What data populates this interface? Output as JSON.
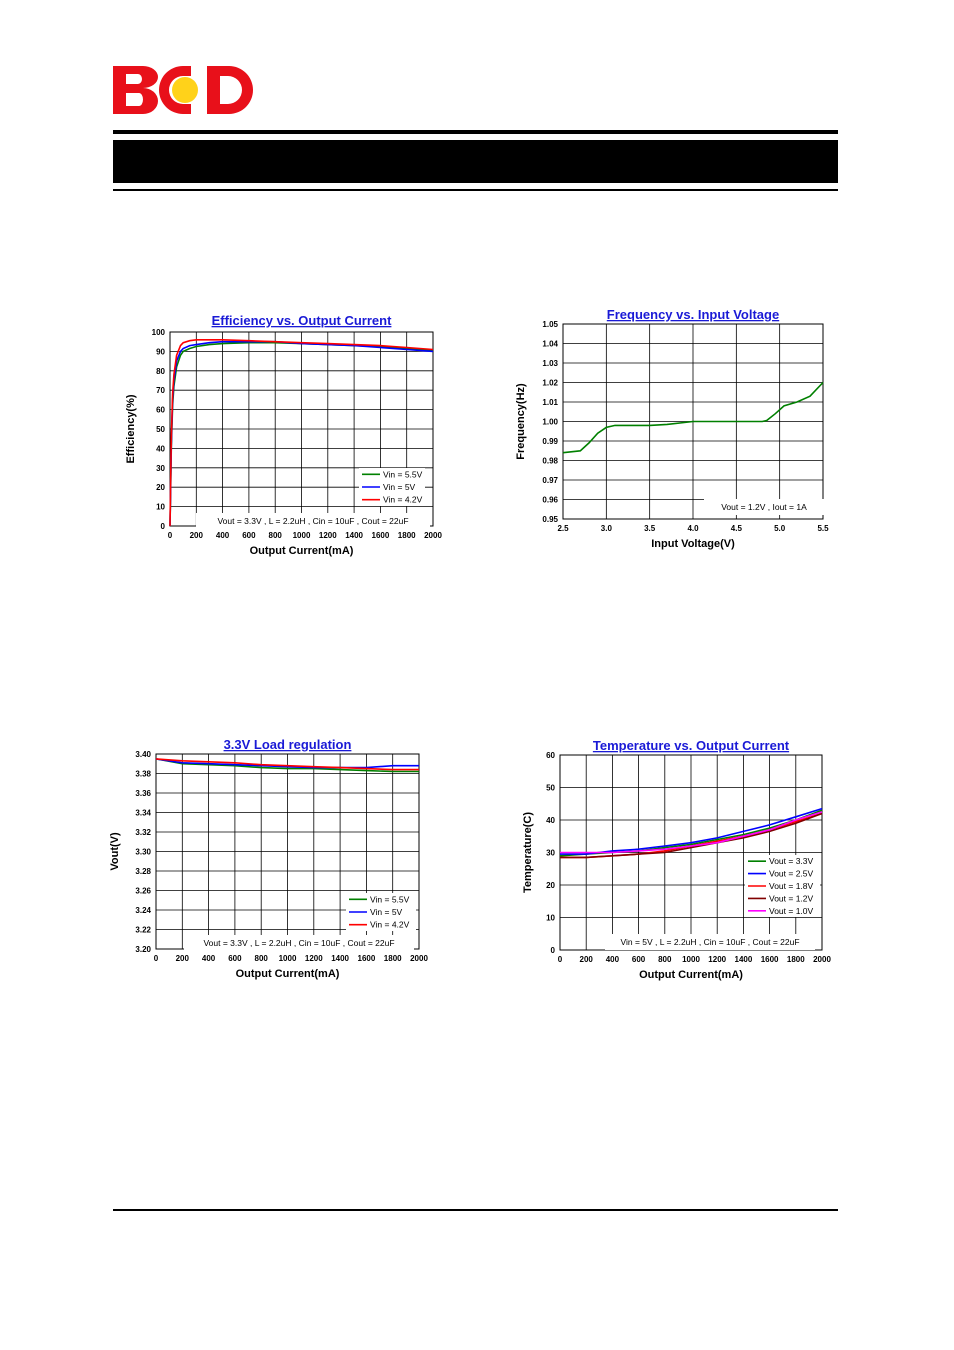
{
  "header": {
    "logo_text": "BCD",
    "logo_colors": {
      "letters": "#e8101a",
      "circle": "#ffd21a"
    }
  },
  "chart_data": [
    {
      "type": "line",
      "title": "Efficiency vs. Output Current",
      "xlabel": "Output Current(mA)",
      "ylabel": "Efficiency(%)",
      "xlim": [
        0,
        2000
      ],
      "ylim": [
        0,
        100
      ],
      "xticks": [
        0,
        200,
        400,
        600,
        800,
        1000,
        1200,
        1400,
        1600,
        1800,
        2000
      ],
      "yticks": [
        0,
        10,
        20,
        30,
        40,
        50,
        60,
        70,
        80,
        90,
        100
      ],
      "grid": true,
      "legend_position": "bottom-right",
      "annotation": "Vout = 3.3V , L = 2.2uH , Cin = 10uF , Cout = 22uF",
      "series": [
        {
          "name": "Vin = 5.5V",
          "color": "#008000",
          "x": [
            0,
            5,
            10,
            20,
            30,
            50,
            80,
            100,
            150,
            200,
            300,
            400,
            600,
            800,
            1000,
            1200,
            1400,
            1600,
            1800,
            2000
          ],
          "y": [
            0,
            20,
            40,
            62,
            72,
            82,
            88,
            90,
            91.5,
            92.5,
            93.5,
            94,
            94.5,
            94.5,
            94,
            93.5,
            93,
            92.5,
            91.5,
            90.5
          ]
        },
        {
          "name": "Vin = 5V",
          "color": "#0000ff",
          "x": [
            0,
            5,
            10,
            20,
            30,
            50,
            80,
            100,
            150,
            200,
            300,
            400,
            600,
            800,
            1000,
            1200,
            1400,
            1600,
            1800,
            2000
          ],
          "y": [
            0,
            22,
            42,
            65,
            75,
            85,
            90,
            91.5,
            93,
            93.5,
            94.5,
            95,
            95,
            95,
            94,
            93.5,
            93,
            92,
            91,
            90
          ]
        },
        {
          "name": "Vin = 4.2V",
          "color": "#ff0000",
          "x": [
            0,
            5,
            10,
            20,
            30,
            50,
            80,
            100,
            150,
            200,
            300,
            400,
            600,
            800,
            1000,
            1200,
            1400,
            1600,
            1800,
            2000
          ],
          "y": [
            0,
            25,
            45,
            68,
            78,
            88,
            93,
            94.5,
            95.5,
            96,
            96,
            96,
            95.5,
            95,
            94.5,
            94,
            93.5,
            93,
            92,
            91
          ]
        }
      ]
    },
    {
      "type": "line",
      "title": "Frequency vs. Input Voltage",
      "xlabel": "Input Voltage(V)",
      "ylabel": "Frequency(Hz)",
      "xlim": [
        2.5,
        5.5
      ],
      "ylim": [
        0.95,
        1.05
      ],
      "xticks": [
        "2.5",
        "3.0",
        "3.5",
        "4.0",
        "4.5",
        "5.0",
        "5.5"
      ],
      "yticks": [
        "0.95",
        "0.96",
        "0.97",
        "0.98",
        "0.99",
        "1.00",
        "1.01",
        "1.02",
        "1.03",
        "1.04",
        "1.05"
      ],
      "grid": true,
      "annotation": "Vout = 1.2V , Iout = 1A",
      "series": [
        {
          "name": "",
          "color": "#008000",
          "x": [
            2.5,
            2.7,
            2.8,
            2.9,
            3.0,
            3.1,
            3.2,
            3.5,
            3.7,
            3.9,
            4.0,
            4.3,
            4.6,
            4.8,
            4.85,
            4.95,
            5.05,
            5.2,
            5.35,
            5.5
          ],
          "y": [
            0.984,
            0.985,
            0.989,
            0.994,
            0.997,
            0.998,
            0.998,
            0.998,
            0.9985,
            0.9995,
            1.0,
            1.0,
            1.0,
            1.0,
            1.0005,
            1.004,
            1.008,
            1.01,
            1.013,
            1.02
          ]
        }
      ]
    },
    {
      "type": "line",
      "title": "3.3V Load regulation",
      "xlabel": "Output Current(mA)",
      "ylabel": "Vout(V)",
      "xlim": [
        0,
        2000
      ],
      "ylim": [
        3.2,
        3.4
      ],
      "xticks": [
        0,
        200,
        400,
        600,
        800,
        1000,
        1200,
        1400,
        1600,
        1800,
        2000
      ],
      "yticks": [
        "3.20",
        "3.22",
        "3.24",
        "3.26",
        "3.28",
        "3.30",
        "3.32",
        "3.34",
        "3.36",
        "3.38",
        "3.40"
      ],
      "grid": true,
      "legend_position": "bottom-right",
      "annotation": "Vout = 3.3V , L = 2.2uH , Cin = 10uF , Cout = 22uF",
      "series": [
        {
          "name": "Vin = 5.5V",
          "color": "#008000",
          "x": [
            0,
            200,
            400,
            600,
            800,
            1000,
            1200,
            1400,
            1600,
            1800,
            2000
          ],
          "y": [
            3.395,
            3.39,
            3.389,
            3.388,
            3.386,
            3.385,
            3.385,
            3.384,
            3.383,
            3.382,
            3.382
          ]
        },
        {
          "name": "Vin = 5V",
          "color": "#0000ff",
          "x": [
            0,
            200,
            400,
            600,
            800,
            1000,
            1200,
            1400,
            1600,
            1800,
            2000
          ],
          "y": [
            3.395,
            3.391,
            3.39,
            3.389,
            3.388,
            3.387,
            3.386,
            3.386,
            3.386,
            3.388,
            3.388
          ]
        },
        {
          "name": "Vin = 4.2V",
          "color": "#ff0000",
          "x": [
            0,
            200,
            400,
            600,
            800,
            1000,
            1200,
            1400,
            1600,
            1800,
            2000
          ],
          "y": [
            3.395,
            3.393,
            3.392,
            3.391,
            3.389,
            3.388,
            3.387,
            3.386,
            3.385,
            3.384,
            3.384
          ]
        }
      ]
    },
    {
      "type": "line",
      "title": "Temperature vs. Output Current",
      "xlabel": "Output Current(mA)",
      "ylabel": "Temperature(C)",
      "xlim": [
        0,
        2000
      ],
      "ylim": [
        0,
        60
      ],
      "xticks": [
        0,
        200,
        400,
        600,
        800,
        1000,
        1200,
        1400,
        1600,
        1800,
        2000
      ],
      "yticks": [
        0,
        10,
        20,
        30,
        40,
        50,
        60
      ],
      "grid": true,
      "legend_position": "bottom-right",
      "annotation": "Vin = 5V , L = 2.2uH , Cin = 10uF , Cout = 22uF",
      "series": [
        {
          "name": "Vout = 3.3V",
          "color": "#008000",
          "x": [
            0,
            200,
            400,
            600,
            800,
            1000,
            1200,
            1400,
            1600,
            1800,
            2000
          ],
          "y": [
            29,
            29.5,
            30,
            30.5,
            31.5,
            32.5,
            34,
            35.5,
            37.5,
            40,
            43
          ]
        },
        {
          "name": "Vout = 2.5V",
          "color": "#0000ff",
          "x": [
            0,
            200,
            400,
            600,
            800,
            1000,
            1200,
            1400,
            1600,
            1800,
            2000
          ],
          "y": [
            29.5,
            29.5,
            30.5,
            31,
            32,
            33,
            34.5,
            36.5,
            38.5,
            41,
            43.5
          ]
        },
        {
          "name": "Vout = 1.8V",
          "color": "#ff0000",
          "x": [
            0,
            200,
            400,
            600,
            800,
            1000,
            1200,
            1400,
            1600,
            1800,
            2000
          ],
          "y": [
            28.5,
            28.5,
            29,
            29.5,
            30.5,
            32,
            33.5,
            35,
            37,
            39.5,
            42
          ]
        },
        {
          "name": "Vout = 1.2V",
          "color": "#800000",
          "x": [
            0,
            200,
            400,
            600,
            800,
            1000,
            1200,
            1400,
            1600,
            1800,
            2000
          ],
          "y": [
            28.5,
            28.5,
            29,
            29.5,
            30,
            31.5,
            33,
            34.5,
            36.5,
            39,
            42
          ]
        },
        {
          "name": "Vout = 1.0V",
          "color": "#ff00ff",
          "x": [
            0,
            200,
            400,
            600,
            800,
            1000,
            1200,
            1400,
            1600,
            1800,
            2000
          ],
          "y": [
            30,
            30,
            30,
            30.5,
            31,
            32,
            33,
            35,
            37,
            40,
            42.5
          ]
        }
      ]
    }
  ]
}
